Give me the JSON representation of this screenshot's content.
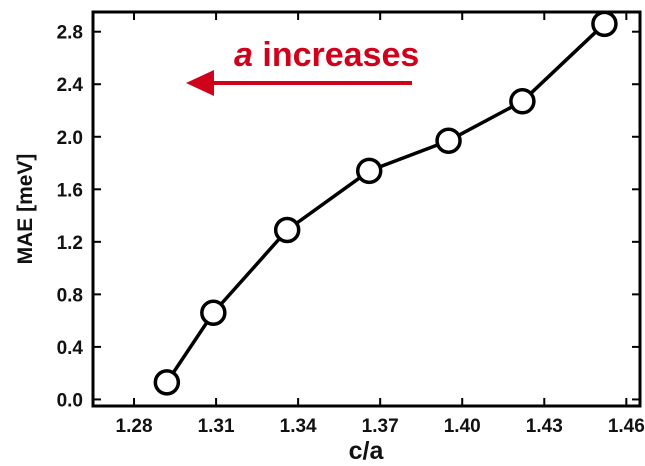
{
  "chart_data": {
    "type": "line",
    "xlabel": "c/a",
    "ylabel": "MAE [meV]",
    "xlim": [
      1.265,
      1.465
    ],
    "ylim": [
      -0.05,
      2.95
    ],
    "x_ticks": [
      1.28,
      1.31,
      1.34,
      1.37,
      1.4,
      1.43,
      1.46
    ],
    "x_tick_labels": [
      "1.28",
      "1.31",
      "1.34",
      "1.37",
      "1.40",
      "1.43",
      "1.46"
    ],
    "y_ticks": [
      0.0,
      0.4,
      0.8,
      1.2,
      1.6,
      2.0,
      2.4,
      2.8
    ],
    "y_tick_labels": [
      "0.0",
      "0.4",
      "0.8",
      "1.2",
      "1.6",
      "2.0",
      "2.4",
      "2.8"
    ],
    "grid": false,
    "series": [
      {
        "marker": "open-circle",
        "color": "#000000",
        "points": [
          {
            "x": 1.292,
            "y": 0.13
          },
          {
            "x": 1.309,
            "y": 0.66
          },
          {
            "x": 1.336,
            "y": 1.29
          },
          {
            "x": 1.366,
            "y": 1.74
          },
          {
            "x": 1.395,
            "y": 1.97
          },
          {
            "x": 1.422,
            "y": 2.27
          },
          {
            "x": 1.452,
            "y": 2.86
          }
        ]
      }
    ],
    "annotation": {
      "italic_part": "a",
      "rest": " increases",
      "color": "#d0021b",
      "arrow_direction": "left"
    }
  }
}
